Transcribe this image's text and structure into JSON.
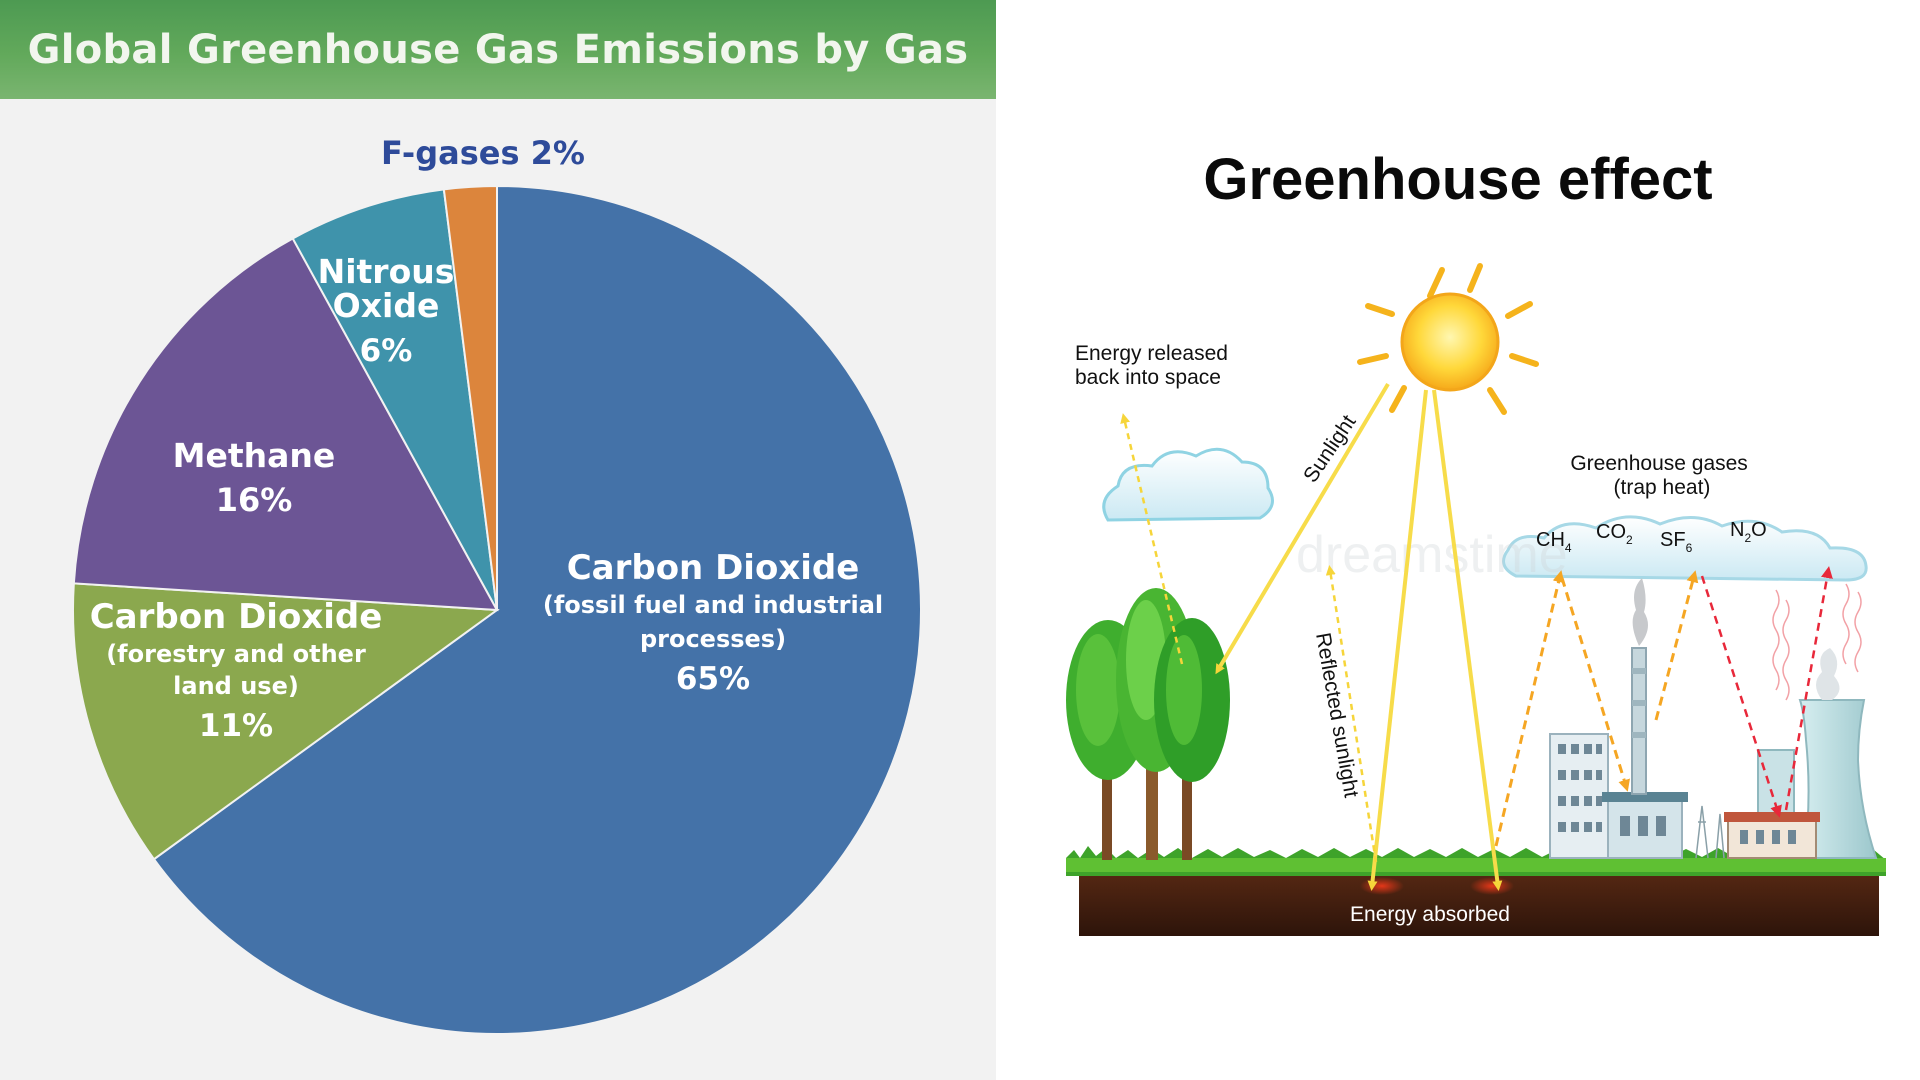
{
  "pie": {
    "title": "Global Greenhouse Gas Emissions by Gas"
  },
  "chart_data": {
    "type": "pie",
    "title": "Global Greenhouse Gas Emissions by Gas",
    "slices": [
      {
        "label_lines": [
          "Carbon Dioxide",
          "(fossil fuel and industrial",
          "processes)",
          "65%"
        ],
        "value": 65,
        "color": "#4472a8"
      },
      {
        "label_lines": [
          "Carbon Dioxide",
          "(forestry and other",
          "land use)",
          "11%"
        ],
        "value": 11,
        "color": "#8ba84e"
      },
      {
        "label_lines": [
          "Methane",
          "16%"
        ],
        "value": 16,
        "color": "#6c5595"
      },
      {
        "label_lines": [
          "Nitrous",
          "Oxide",
          "6%"
        ],
        "value": 6,
        "color": "#3f93ab"
      },
      {
        "label_lines": [
          "F-gases 2%"
        ],
        "value": 2,
        "color": "#dc853c"
      }
    ]
  },
  "diagram": {
    "title": "Greenhouse effect",
    "labels": {
      "energy_released": [
        "Energy released",
        "back into space"
      ],
      "sunlight": "Sunlight",
      "greenhouse_gases": [
        "Greenhouse gases",
        "(trap heat)"
      ],
      "reflected_sunlight": "Reflected sunlight",
      "energy_absorbed": "Energy absorbed"
    },
    "gases": [
      {
        "base": "CH",
        "sub": "4",
        "tail": ""
      },
      {
        "base": "CO",
        "sub": "2",
        "tail": ""
      },
      {
        "base": "SF",
        "sub": "6",
        "tail": ""
      },
      {
        "base": "N",
        "sub": "2",
        "tail": "O"
      }
    ],
    "watermark": "dreamstime"
  }
}
